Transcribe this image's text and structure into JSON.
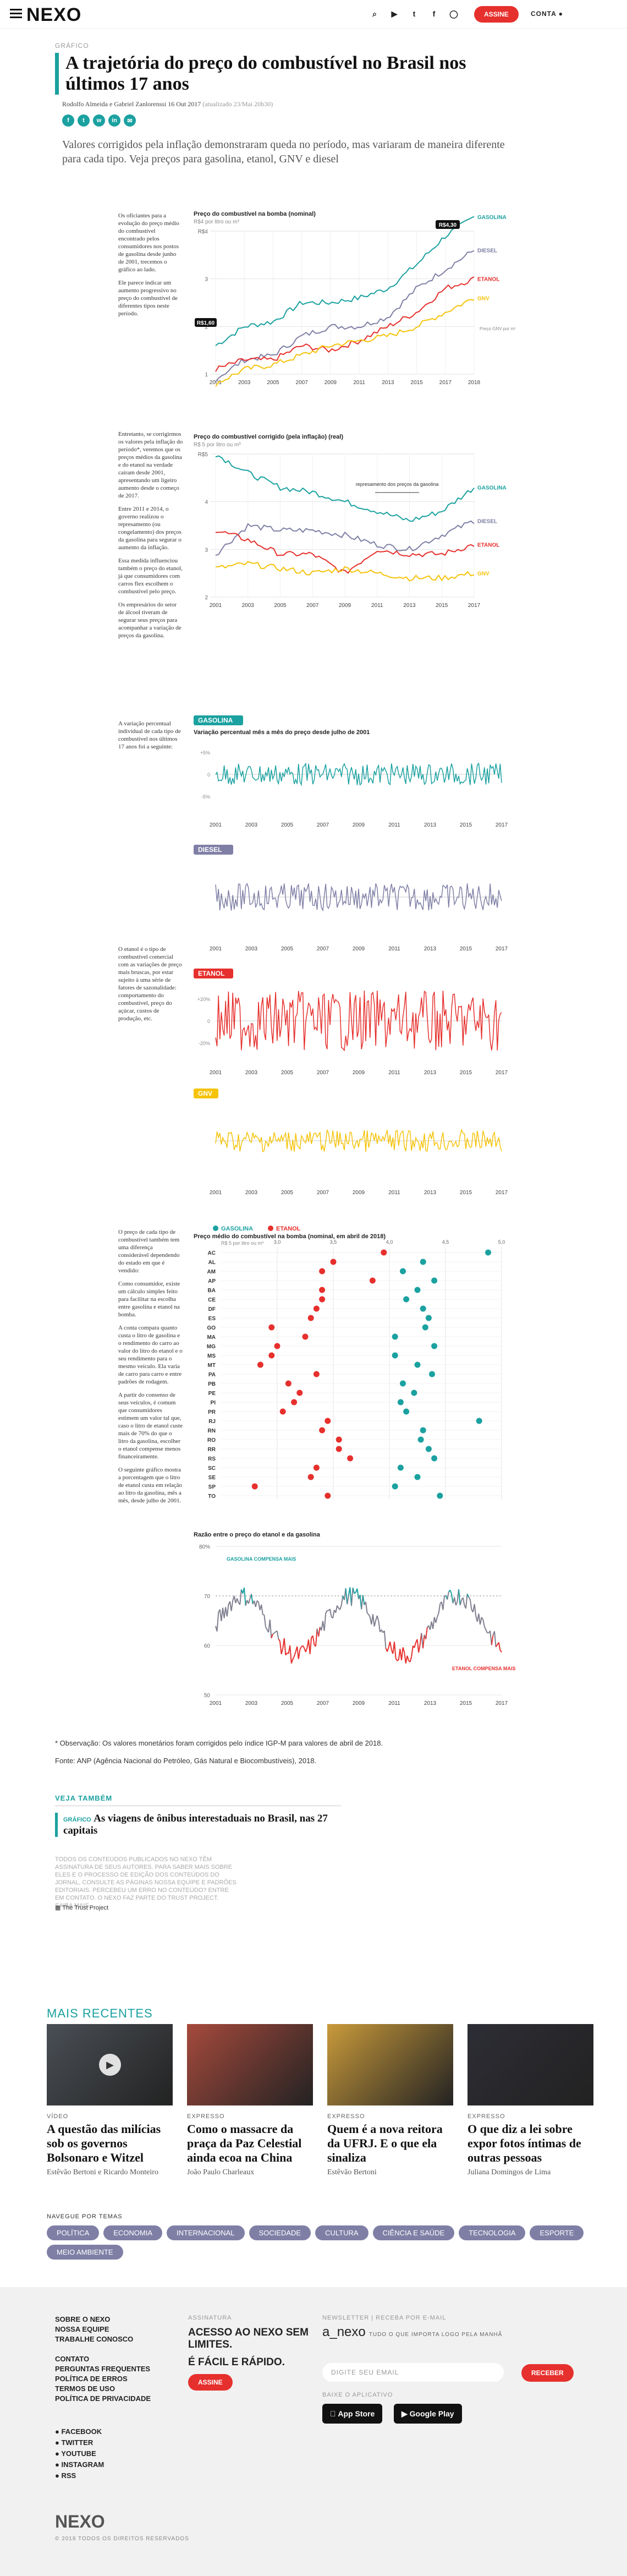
{
  "header": {
    "logo": "NEXO",
    "subscribe": "ASSINE",
    "account": "CONTA",
    "icons": [
      "search-icon",
      "youtube-icon",
      "twitter-icon",
      "facebook-icon",
      "instagram-icon"
    ]
  },
  "article": {
    "kicker": "GRÁFICO",
    "title": "A trajetória do preço do combustível no Brasil nos últimos 17 anos",
    "byline": "Rodolfo Almeida e Gabriel Zanlorenssi 16 Out 2017",
    "updated": "(atualizado 23/Mai 20h30)",
    "subtitle": "Valores corrigidos pela inflação demonstraram queda no período, mas variaram de maneira diferente para cada tipo. Veja preços para gasolina, etanol, GNV e diesel",
    "share_icons": [
      "f",
      "t",
      "w",
      "in",
      "✉"
    ]
  },
  "side_texts": {
    "s1": [
      "Os oficiantes para a evolução do preço médio do combustível encontrado pelos consumidores nos postos de gasolina desde junho de 2001, trecemos o gráfico ao lado.",
      "Ele parece indicar um aumento progressivo no preço do combustível de diferentes tipos neste período."
    ],
    "s2": [
      "Entretanto, se corrigirmos os valores pela inflação do período*, veremos que os preços médios da gasolina e do etanol na verdade caíram desde 2001, apresentando um ligeiro aumento desde o começo de 2017.",
      "Entre 2011 e 2014, o governo realizou o represamento (ou congelamento) dos preços da gasolina para segurar o aumento da inflação.",
      "Essa medida influenciou também o preço do etanol, já que consumidores com carros flex escolhem o combustível pelo preço.",
      "Os empresários do setor de álcool tiveram de segurar seus preços para acompanhar a variação de preços da gasolina."
    ],
    "s3": [
      "A variação percentual individual de cada tipo de combustível nos últimos 17 anos foi a seguinte:"
    ],
    "s4": [
      "O etanol é o tipo de combustível comercial com as variações de preço mais bruscas, por estar sujeito à uma série de fatores de sazonalidade: comportamento do combustível, preço do açúcar, custos de produção, etc."
    ],
    "s5": [
      "O preço de cada tipo de combustível também tem uma diferença considerável dependendo do estado em que é vendido:",
      "Como consumidor, existe um cálculo simples feito para facilitar na escolha entre gasolina e etanol na bomba.",
      "A conta compara quanto custa o litro de gasolina e o rendimento do carro ao valor do litro do etanol e o seu rendimento para o mesmo veículo. Ela varia de carro para carro e entre padrões de rodagem.",
      "A partir do consenso de seus veículos, é comum que consumidores estimem um valor tal que, caso o litro de etanol custe mais de 70% do que o litro da gasolina, escolher o etanol compense menos financeiramente.",
      "O seguinte gráfico mostra a porcentagem que o litro de etanol custa em relação ao litro da gasolina, mês a mês, desde julho de 2001."
    ]
  },
  "chart_data": [
    {
      "type": "line",
      "title": "Preço do combustível na bomba (nominal)",
      "ylabel": "R$4 por litro ou m³",
      "x": [
        "2001",
        "2003",
        "2005",
        "2007",
        "2009",
        "2011",
        "2013",
        "2015",
        "2017",
        "2018"
      ],
      "ylim": [
        1,
        4
      ],
      "yticks": [
        "1",
        "2",
        "3",
        "R$4"
      ],
      "series": [
        {
          "name": "GASOLINA",
          "color": "#1aa1a0",
          "values": [
            1.6,
            2.0,
            2.1,
            2.5,
            2.5,
            2.6,
            2.8,
            3.3,
            3.9,
            4.3
          ]
        },
        {
          "name": "DIESEL",
          "color": "#7f7fa6",
          "values": [
            0.9,
            1.3,
            1.4,
            1.8,
            2.0,
            2.0,
            2.2,
            2.8,
            3.2,
            3.6
          ]
        },
        {
          "name": "ETANOL",
          "color": "#e6302d",
          "values": [
            1.1,
            1.3,
            1.3,
            1.6,
            1.5,
            1.7,
            2.0,
            2.3,
            2.8,
            3.0
          ]
        },
        {
          "name": "GNV",
          "color": "#f5c30a",
          "values": [
            0.8,
            1.1,
            1.2,
            1.4,
            1.6,
            1.7,
            1.8,
            2.0,
            2.3,
            2.6
          ]
        }
      ],
      "annotations": [
        "R$4,30",
        "R$1,60",
        "Preço GNV por m³"
      ]
    },
    {
      "type": "line",
      "title": "Preço do combustível corrigido (pela inflação) (real)",
      "ylabel": "R$ 5 por litro ou m³",
      "x": [
        "2001",
        "2003",
        "2005",
        "2007",
        "2009",
        "2011",
        "2013",
        "2015",
        "2017"
      ],
      "ylim": [
        2,
        5
      ],
      "yticks": [
        "2",
        "3",
        "4",
        "R$5"
      ],
      "series": [
        {
          "name": "GASOLINA",
          "color": "#1aa1a0",
          "values": [
            5.0,
            4.6,
            4.3,
            4.2,
            4.0,
            3.8,
            3.6,
            3.8,
            4.3
          ]
        },
        {
          "name": "DIESEL",
          "color": "#7f7fa6",
          "values": [
            2.9,
            3.5,
            3.4,
            3.4,
            3.3,
            3.1,
            3.0,
            3.3,
            3.6
          ]
        },
        {
          "name": "ETANOL",
          "color": "#e6302d",
          "values": [
            3.4,
            3.2,
            2.9,
            2.9,
            2.5,
            3.0,
            2.9,
            2.9,
            3.1
          ]
        },
        {
          "name": "GNV",
          "color": "#f5c30a",
          "values": [
            2.6,
            2.7,
            2.6,
            2.5,
            2.6,
            2.5,
            2.4,
            2.4,
            2.5
          ]
        }
      ],
      "annotations": [
        "represamento dos preços da gasolina"
      ]
    },
    {
      "type": "line",
      "title": "Variação percentual mês a mês do preço desde julho de 2001",
      "label": "GASOLINA",
      "x": [
        "2001",
        "2003",
        "2005",
        "2007",
        "2009",
        "2011",
        "2013",
        "2015",
        "2017"
      ],
      "yticks": [
        "+5%",
        "0",
        "-5%"
      ]
    },
    {
      "type": "line",
      "label": "DIESEL",
      "x": [
        "2001",
        "2003",
        "2005",
        "2007",
        "2009",
        "2011",
        "2013",
        "2015",
        "2017"
      ]
    },
    {
      "type": "line",
      "label": "ETANOL",
      "x": [
        "2001",
        "2003",
        "2005",
        "2007",
        "2009",
        "2011",
        "2013",
        "2015",
        "2017"
      ],
      "yticks": [
        "+20%",
        "0",
        "-20%"
      ]
    },
    {
      "type": "line",
      "label": "GNV",
      "x": [
        "2001",
        "2003",
        "2005",
        "2007",
        "2009",
        "2011",
        "2013",
        "2015",
        "2017"
      ]
    },
    {
      "type": "scatter",
      "title": "Preço médio do combustível na bomba (nominal, em abril de 2018)",
      "legend": [
        "GASOLINA",
        "ETANOL"
      ],
      "xlabel": "R$ 5 por litro ou m³",
      "xticks": [
        "3,0",
        "3,5",
        "4,0",
        "4,5",
        "5,0"
      ],
      "xlim": [
        2.5,
        5.0
      ],
      "categories": [
        "AC",
        "AL",
        "AM",
        "AP",
        "BA",
        "CE",
        "DF",
        "ES",
        "GO",
        "MA",
        "MG",
        "MS",
        "MT",
        "PA",
        "PB",
        "PE",
        "PI",
        "PR",
        "RJ",
        "RN",
        "RO",
        "RR",
        "RS",
        "SC",
        "SE",
        "SP",
        "TO"
      ],
      "series": [
        {
          "name": "GASOLINA",
          "color": "#1aa1a0",
          "values": [
            4.88,
            4.3,
            4.12,
            4.4,
            4.25,
            4.15,
            4.3,
            4.35,
            4.32,
            4.05,
            4.4,
            4.05,
            4.25,
            4.38,
            4.12,
            4.22,
            4.1,
            4.15,
            4.8,
            4.3,
            4.28,
            4.35,
            4.4,
            4.1,
            4.25,
            4.05,
            4.45
          ]
        },
        {
          "name": "ETANOL",
          "color": "#e6302d",
          "values": [
            3.95,
            3.5,
            3.4,
            3.85,
            3.4,
            3.4,
            3.35,
            3.3,
            2.95,
            3.25,
            3.0,
            2.95,
            2.85,
            3.35,
            3.1,
            3.2,
            3.15,
            3.05,
            3.45,
            3.4,
            3.55,
            3.55,
            3.65,
            3.35,
            3.3,
            2.8,
            3.45
          ]
        }
      ]
    },
    {
      "type": "line",
      "title": "Razão entre o preço do etanol e da gasolina",
      "ylabel": "80%",
      "yticks": [
        "80%",
        "70",
        "60",
        "50"
      ],
      "x": [
        "2001",
        "2003",
        "2005",
        "2007",
        "2009",
        "2011",
        "2013",
        "2015",
        "2017"
      ],
      "annotations": [
        "GASOLINA COMPENSA MAIS",
        "ETANOL COMPENSA MAIS"
      ]
    }
  ],
  "notes": {
    "obs": "* Observação: Os valores monetários foram corrigidos pelo índice IGP-M para valores de abril de 2018.",
    "fonte": "Fonte: ANP (Agência Nacional do Petróleo, Gás Natural e Biocombustíveis), 2018."
  },
  "see_also": {
    "label": "VEJA TAMBÉM",
    "kicker": "GRÁFICO",
    "title": "As viagens de ônibus interestaduais no Brasil, nas 27 capitais"
  },
  "fine_print": "TODOS OS CONTEÚDOS PUBLICADOS NO NEXO TÊM ASSINATURA DE SEUS AUTORES. PARA SABER MAIS SOBRE ELES E O PROCESSO DE EDIÇÃO DOS CONTEÚDOS DO JORNAL, CONSULTE AS PÁGINAS NOSSA EQUIPE E PADRÕES EDITORIAIS. PERCEBEU UM ERRO NO CONTEÚDO? ENTRE EM CONTATO. O NEXO FAZ PARTE DO TRUST PROJECT. SAIBA MAIS.",
  "trust": "The Trust Project",
  "mais_recentes": {
    "label": "MAIS RECENTES",
    "cards": [
      {
        "cat": "VÍDEO",
        "title": "A questão das milícias sob os governos Bolsonaro e Witzel",
        "author": "Estêvão Bertoni e Ricardo Monteiro"
      },
      {
        "cat": "EXPRESSO",
        "title": "Como o massacre da praça da Paz Celestial ainda ecoa na China",
        "author": "João Paulo Charleaux"
      },
      {
        "cat": "EXPRESSO",
        "title": "Quem é a nova reitora da UFRJ. E o que ela sinaliza",
        "author": "Estêvão Bertoni"
      },
      {
        "cat": "EXPRESSO",
        "title": "O que diz a lei sobre expor fotos íntimas de outras pessoas",
        "author": "Juliana Domingos de Lima"
      }
    ]
  },
  "navegue": {
    "label": "NAVEGUE POR TEMAS",
    "tags": [
      "POLÍTICA",
      "ECONOMIA",
      "INTERNACIONAL",
      "SOCIEDADE",
      "CULTURA",
      "CIÊNCIA E SAÚDE",
      "TECNOLOGIA",
      "ESPORTE",
      "MEIO AMBIENTE"
    ]
  },
  "footer": {
    "links": [
      "SOBRE O NEXO",
      "NOSSA EQUIPE",
      "TRABALHE CONOSCO",
      "",
      "CONTATO",
      "PERGUNTAS FREQUENTES",
      "POLÍTICA DE ERROS",
      "TERMOS DE USO",
      "POLÍTICA DE PRIVACIDADE"
    ],
    "social": [
      "FACEBOOK",
      "TWITTER",
      "YOUTUBE",
      "INSTAGRAM",
      "RSS"
    ],
    "assinatura_label": "ASSINATURA",
    "assinatura_text": "ACESSO AO NEXO SEM LIMITES.",
    "assinatura_text2": "É FÁCIL E RÁPIDO.",
    "assine": "ASSINE",
    "newsletter_label": "NEWSLETTER | RECEBA POR E-MAIL",
    "newsletter_name": "a_nexo",
    "newsletter_tag": "TUDO O QUE IMPORTA LOGO PELA MANHÃ",
    "email_placeholder": "DIGITE SEU EMAIL",
    "receber": "RECEBER",
    "baixe": "BAIXE O APLICATIVO",
    "appstore": "App Store",
    "googleplay": "Google Play",
    "logo": "NEXO",
    "copyright": "© 2018 TODOS OS DIREITOS RESERVADOS"
  }
}
